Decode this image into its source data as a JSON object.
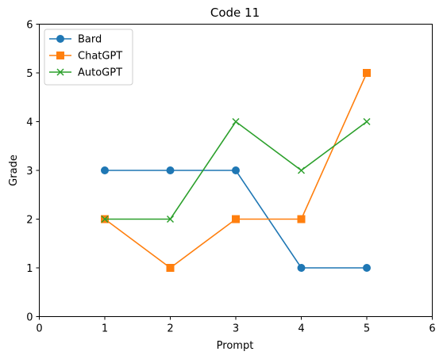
{
  "chart_data": {
    "type": "line",
    "title": "Code 11",
    "xlabel": "Prompt",
    "ylabel": "Grade",
    "xlim": [
      0,
      6
    ],
    "ylim": [
      0,
      6
    ],
    "xticks": [
      0,
      1,
      2,
      3,
      4,
      5,
      6
    ],
    "yticks": [
      0,
      1,
      2,
      3,
      4,
      5,
      6
    ],
    "grid": false,
    "legend_position": "top-left",
    "x": [
      1,
      2,
      3,
      4,
      5
    ],
    "series": [
      {
        "name": "Bard",
        "values": [
          3,
          3,
          3,
          1,
          1
        ],
        "color": "#1f77b4",
        "marker": "circle"
      },
      {
        "name": "ChatGPT",
        "values": [
          2,
          1,
          2,
          2,
          5
        ],
        "color": "#ff7f0e",
        "marker": "square"
      },
      {
        "name": "AutoGPT",
        "values": [
          2,
          2,
          4,
          3,
          4
        ],
        "color": "#2ca02c",
        "marker": "x"
      }
    ]
  }
}
